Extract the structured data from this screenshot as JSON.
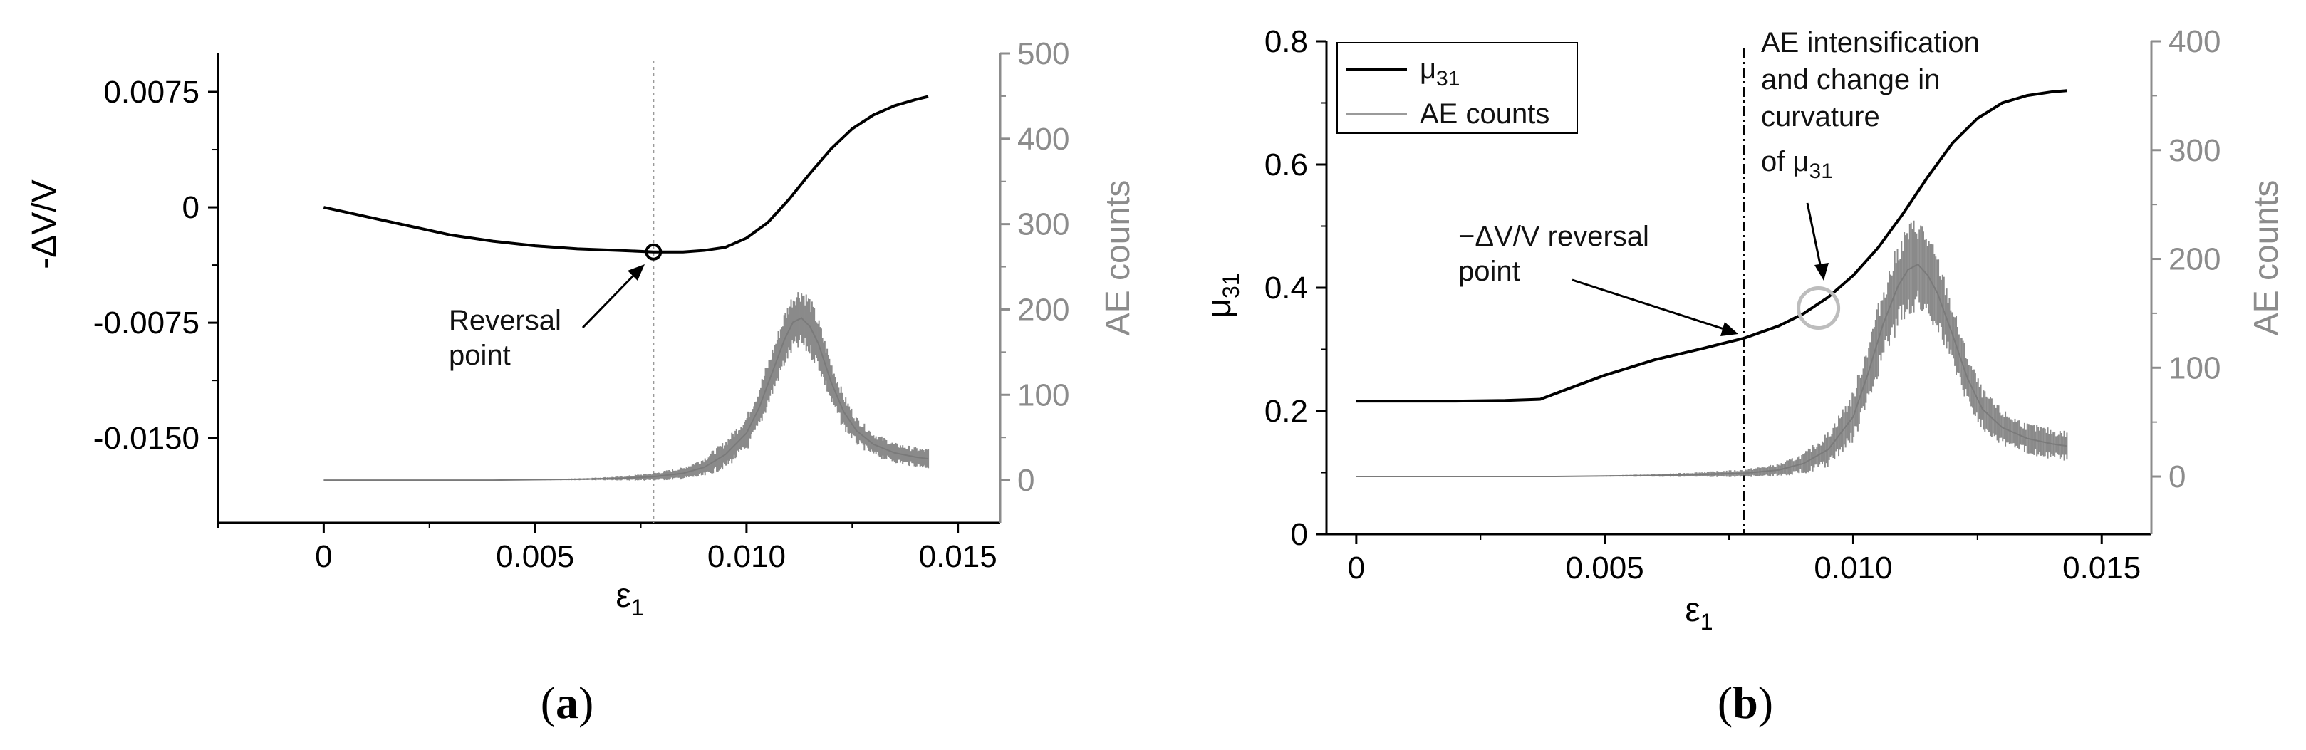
{
  "chart_data": [
    {
      "type": "line",
      "panel": {
        "open": "(",
        "letter": "a",
        "close": ")"
      },
      "xlabel": {
        "main": "ε",
        "sub": "1"
      },
      "ylabel": "-ΔV/V",
      "y2label": "AE counts",
      "xlim": [
        -0.0025,
        0.016
      ],
      "ylim": [
        -0.0205,
        0.01
      ],
      "y2lim": [
        -50,
        500
      ],
      "xticks": [
        "0",
        "0.005",
        "0.010",
        "0.015"
      ],
      "xtick_values": [
        0,
        0.005,
        0.01,
        0.015
      ],
      "yticks": [
        "0.0075",
        "0",
        "-0.0075",
        "-0.0150"
      ],
      "ytick_values": [
        0.0075,
        0,
        -0.0075,
        -0.015
      ],
      "y2ticks": [
        "500",
        "400",
        "300",
        "200",
        "100",
        "0"
      ],
      "y2tick_values": [
        500,
        400,
        300,
        200,
        100,
        0
      ],
      "series": [
        {
          "axis": "left",
          "color": "#000000",
          "x": [
            0,
            0.001,
            0.002,
            0.003,
            0.004,
            0.005,
            0.006,
            0.007,
            0.0078,
            0.0085,
            0.009,
            0.0095,
            0.01,
            0.0105,
            0.011,
            0.0115,
            0.012,
            0.0125,
            0.013,
            0.0135,
            0.014,
            0.0143
          ],
          "y": [
            0,
            -0.0006,
            -0.0012,
            -0.0018,
            -0.0022,
            -0.0025,
            -0.0027,
            -0.0028,
            -0.0029,
            -0.0029,
            -0.0028,
            -0.0026,
            -0.002,
            -0.001,
            0.0005,
            0.0022,
            0.0038,
            0.0051,
            0.006,
            0.0066,
            0.007,
            0.0072
          ]
        },
        {
          "axis": "right",
          "color": "#808080",
          "x": [
            0,
            0.002,
            0.004,
            0.006,
            0.007,
            0.0078,
            0.0085,
            0.009,
            0.0095,
            0.01,
            0.0103,
            0.0106,
            0.0109,
            0.0111,
            0.0113,
            0.0115,
            0.0117,
            0.012,
            0.0123,
            0.0126,
            0.013,
            0.0135,
            0.014,
            0.0143
          ],
          "y": [
            0,
            0,
            0,
            1,
            2,
            4,
            8,
            15,
            30,
            55,
            85,
            125,
            165,
            185,
            190,
            180,
            160,
            115,
            80,
            58,
            42,
            32,
            27,
            25
          ],
          "band": [
            0,
            0,
            0,
            1,
            2,
            4,
            6,
            10,
            14,
            18,
            22,
            24,
            28,
            30,
            32,
            30,
            26,
            22,
            18,
            14,
            12,
            10,
            10,
            10
          ]
        }
      ],
      "vline_x": 0.0078,
      "marker": {
        "x": 0.0078,
        "y": -0.0029
      },
      "annotations": [
        {
          "line1": "Reversal",
          "line2": "point"
        }
      ]
    },
    {
      "type": "line",
      "panel": {
        "open": "(",
        "letter": "b",
        "close": ")"
      },
      "xlabel": {
        "main": "ε",
        "sub": "1"
      },
      "ylabel": {
        "main": "μ",
        "sub": "31"
      },
      "y2label": "AE counts",
      "xlim": [
        -0.0006,
        0.016
      ],
      "ylim": [
        0,
        0.8
      ],
      "y2lim": [
        -53,
        400
      ],
      "xticks": [
        "0",
        "0.005",
        "0.010",
        "0.015"
      ],
      "xtick_values": [
        0,
        0.005,
        0.01,
        0.015
      ],
      "yticks": [
        "0.8",
        "0.6",
        "0.4",
        "0.2",
        "0"
      ],
      "ytick_values": [
        0.8,
        0.6,
        0.4,
        0.2,
        0
      ],
      "y2ticks": [
        "400",
        "300",
        "200",
        "100",
        "0"
      ],
      "y2tick_values": [
        400,
        300,
        200,
        100,
        0
      ],
      "legend": {
        "position": "top-left",
        "entries": [
          {
            "main": "μ",
            "sub": "31"
          },
          {
            "main": "AE counts",
            "sub": ""
          }
        ]
      },
      "series": [
        {
          "axis": "left",
          "color": "#000000",
          "x": [
            0,
            0.001,
            0.002,
            0.003,
            0.0037,
            0.004,
            0.005,
            0.006,
            0.007,
            0.0078,
            0.0085,
            0.009,
            0.0095,
            0.01,
            0.0105,
            0.011,
            0.0115,
            0.012,
            0.0125,
            0.013,
            0.0135,
            0.014,
            0.0143
          ],
          "y": [
            0.216,
            0.216,
            0.216,
            0.217,
            0.219,
            0.228,
            0.258,
            0.283,
            0.302,
            0.318,
            0.338,
            0.358,
            0.385,
            0.42,
            0.465,
            0.52,
            0.58,
            0.635,
            0.675,
            0.7,
            0.712,
            0.718,
            0.72
          ]
        },
        {
          "axis": "right",
          "color": "#808080",
          "x": [
            0,
            0.002,
            0.004,
            0.006,
            0.007,
            0.0078,
            0.0085,
            0.009,
            0.0095,
            0.01,
            0.0103,
            0.0106,
            0.0109,
            0.0111,
            0.0113,
            0.0115,
            0.0117,
            0.012,
            0.0123,
            0.0126,
            0.013,
            0.0135,
            0.014,
            0.0143
          ],
          "y": [
            0,
            0,
            0,
            1,
            2,
            3,
            6,
            12,
            25,
            55,
            95,
            140,
            175,
            190,
            195,
            185,
            168,
            130,
            90,
            62,
            45,
            35,
            30,
            28
          ],
          "band": [
            0,
            0,
            0,
            1,
            2,
            3,
            5,
            8,
            14,
            20,
            26,
            30,
            34,
            36,
            38,
            34,
            30,
            24,
            20,
            16,
            14,
            12,
            12,
            12
          ]
        }
      ],
      "vline_x": 0.0078,
      "marker": {
        "x": 0.0093,
        "y": 0.367
      },
      "annotations": [
        {
          "line1": "−ΔV/V reversal",
          "line2": "point"
        },
        {
          "line1": "AE intensification",
          "line2": "and change in",
          "line3": "curvature",
          "line4_main": "of μ",
          "line4_sub": "31"
        }
      ]
    }
  ]
}
